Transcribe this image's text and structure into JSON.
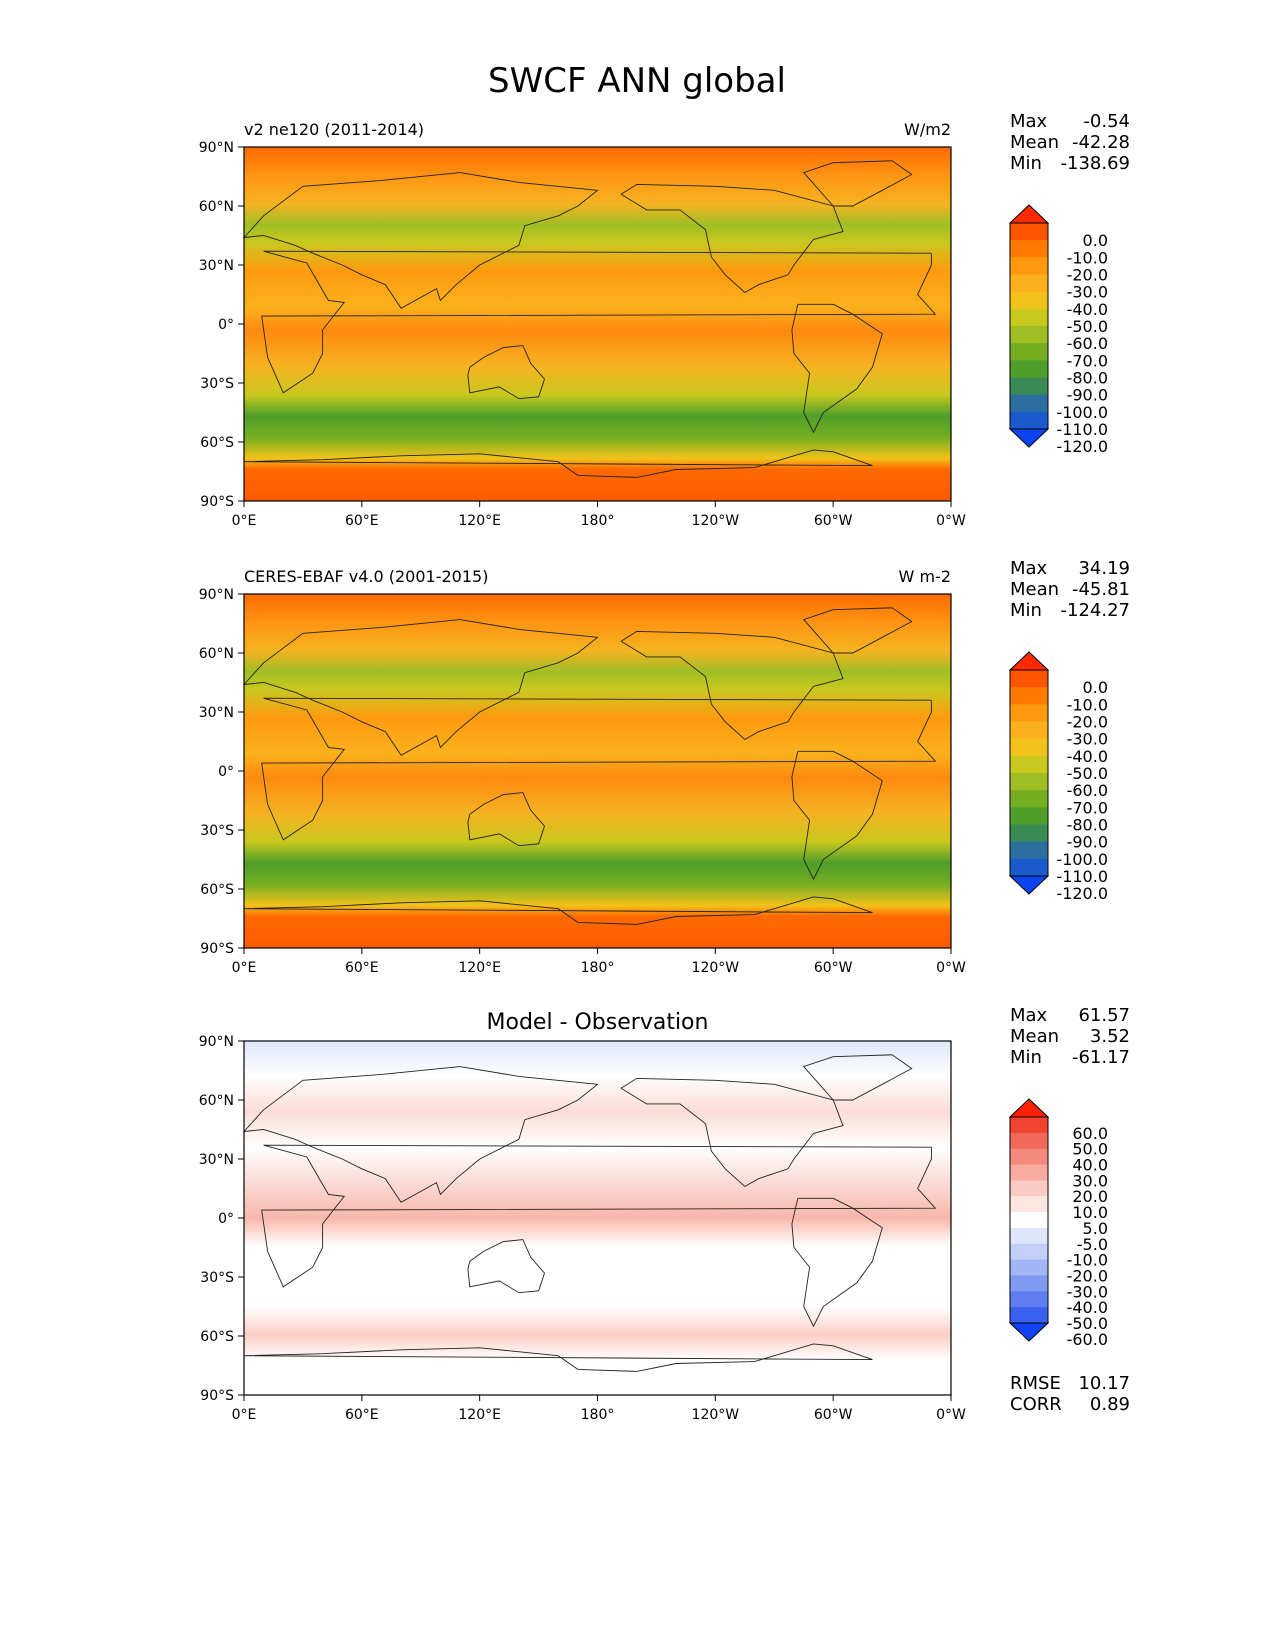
{
  "figure": {
    "title": "SWCF ANN global"
  },
  "chart_data": [
    {
      "type": "heatmap",
      "kind": "map",
      "title_left": "v2 ne120 (2011-2014)",
      "title_center": "",
      "units": "W/m2",
      "lat_ticks": [
        "90°N",
        "60°N",
        "30°N",
        "0°",
        "30°S",
        "60°S",
        "90°S"
      ],
      "lon_ticks": [
        "0°E",
        "60°E",
        "120°E",
        "180°",
        "120°W",
        "60°W",
        "0°W"
      ],
      "stats": {
        "max_label": "Max",
        "max": "-0.54",
        "mean_label": "Mean",
        "mean": "-42.28",
        "min_label": "Min",
        "min": "-138.69"
      },
      "colorbar": {
        "extend": "both",
        "levels": [
          "0.0",
          "-10.0",
          "-20.0",
          "-30.0",
          "-40.0",
          "-50.0",
          "-60.0",
          "-70.0",
          "-80.0",
          "-90.0",
          "-100.0",
          "-110.0",
          "-120.0"
        ],
        "colors": [
          "#ff2a00",
          "#ff5500",
          "#ff7a00",
          "#ff9a10",
          "#fbb11c",
          "#f2c21a",
          "#c9c81e",
          "#9fbe24",
          "#76ae22",
          "#4f9e2a",
          "#3a8a55",
          "#2c6f9e",
          "#1a5acc",
          "#0b45f0"
        ]
      }
    },
    {
      "type": "heatmap",
      "kind": "map",
      "title_left": "CERES-EBAF v4.0 (2001-2015)",
      "title_center": "",
      "units": "W m-2",
      "lat_ticks": [
        "90°N",
        "60°N",
        "30°N",
        "0°",
        "30°S",
        "60°S",
        "90°S"
      ],
      "lon_ticks": [
        "0°E",
        "60°E",
        "120°E",
        "180°",
        "120°W",
        "60°W",
        "0°W"
      ],
      "stats": {
        "max_label": "Max",
        "max": "34.19",
        "mean_label": "Mean",
        "mean": "-45.81",
        "min_label": "Min",
        "min": "-124.27"
      },
      "colorbar": {
        "extend": "both",
        "levels": [
          "0.0",
          "-10.0",
          "-20.0",
          "-30.0",
          "-40.0",
          "-50.0",
          "-60.0",
          "-70.0",
          "-80.0",
          "-90.0",
          "-100.0",
          "-110.0",
          "-120.0"
        ],
        "colors": [
          "#ff2a00",
          "#ff5500",
          "#ff7a00",
          "#ff9a10",
          "#fbb11c",
          "#f2c21a",
          "#c9c81e",
          "#9fbe24",
          "#76ae22",
          "#4f9e2a",
          "#3a8a55",
          "#2c6f9e",
          "#1a5acc",
          "#0b45f0"
        ]
      }
    },
    {
      "type": "heatmap",
      "kind": "map",
      "title_left": "",
      "title_center": "Model - Observation",
      "units": "",
      "lat_ticks": [
        "90°N",
        "60°N",
        "30°N",
        "0°",
        "30°S",
        "60°S",
        "90°S"
      ],
      "lon_ticks": [
        "0°E",
        "60°E",
        "120°E",
        "180°",
        "120°W",
        "60°W",
        "0°W"
      ],
      "stats": {
        "max_label": "Max",
        "max": "61.57",
        "mean_label": "Mean",
        "mean": "3.52",
        "min_label": "Min",
        "min": "-61.17"
      },
      "extra_stats": [
        {
          "label": "RMSE",
          "value": "10.17"
        },
        {
          "label": "CORR",
          "value": "0.89"
        }
      ],
      "colorbar": {
        "extend": "both",
        "levels": [
          "60.0",
          "50.0",
          "40.0",
          "30.0",
          "20.0",
          "10.0",
          "5.0",
          "-5.0",
          "-10.0",
          "-20.0",
          "-30.0",
          "-40.0",
          "-50.0",
          "-60.0"
        ],
        "colors": [
          "#ff2200",
          "#f0442e",
          "#f2685a",
          "#f5897c",
          "#f8aa9f",
          "#fbcac2",
          "#fde5e0",
          "#ffffff",
          "#dfe6fb",
          "#c2d0f8",
          "#a2b6f5",
          "#809af2",
          "#5e7ef0",
          "#3a60f0",
          "#1144f5"
        ]
      }
    }
  ]
}
